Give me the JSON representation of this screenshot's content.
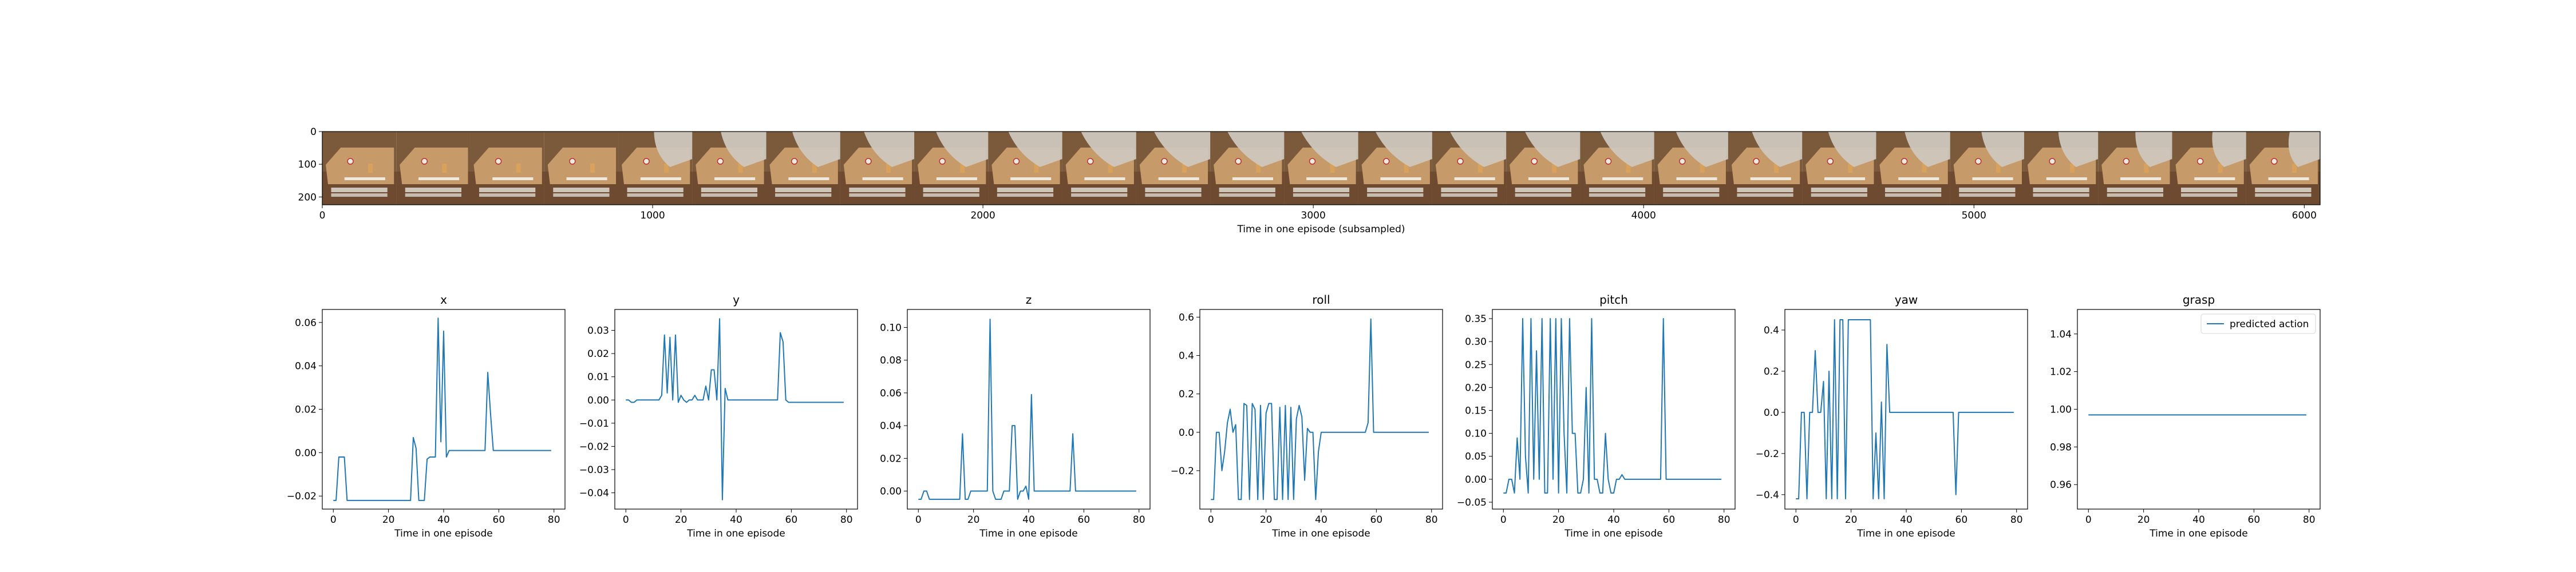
{
  "strip": {
    "xlabel": "Time in one episode (subsampled)",
    "x_ticks": [
      0,
      1000,
      2000,
      3000,
      4000,
      5000,
      6000
    ],
    "y_ticks": [
      0,
      100,
      200
    ],
    "xlim": [
      0,
      6048
    ],
    "ylim": [
      224,
      0
    ],
    "frame_count": 27,
    "colors": {
      "wood": "#7a5a3a",
      "table": "#6e4a30",
      "counter": "#c79a6a",
      "cup": "#d9a25c",
      "lid": "#e8e8e8",
      "label": "#eee9df",
      "arm": "#cfc7bd"
    }
  },
  "chart_data": [
    {
      "type": "line",
      "title": "x",
      "xlabel": "Time in one episode",
      "ylabel": "",
      "series": [
        {
          "name": "",
          "color": "#1f77b4",
          "x": [
            0,
            1,
            2,
            3,
            4,
            5,
            6,
            7,
            8,
            9,
            10,
            20,
            28,
            29,
            30,
            31,
            32,
            33,
            34,
            35,
            36,
            37,
            38,
            39,
            40,
            41,
            42,
            43,
            44,
            45,
            50,
            55,
            56,
            57,
            58,
            59,
            60,
            70,
            79
          ],
          "y": [
            -0.022,
            -0.022,
            -0.002,
            -0.002,
            -0.002,
            -0.022,
            -0.022,
            -0.022,
            -0.022,
            -0.022,
            -0.022,
            -0.022,
            -0.022,
            0.007,
            0.002,
            -0.022,
            -0.022,
            -0.022,
            -0.003,
            -0.002,
            -0.002,
            -0.002,
            0.062,
            0.005,
            0.056,
            -0.002,
            0.001,
            0.001,
            0.001,
            0.001,
            0.001,
            0.001,
            0.037,
            0.018,
            0.001,
            0.001,
            0.001,
            0.001,
            0.001
          ]
        }
      ],
      "x_ticks": [
        0,
        20,
        40,
        60,
        80
      ],
      "y_ticks": [
        -0.02,
        0.0,
        0.02,
        0.04,
        0.06
      ],
      "y_tick_labels": [
        "−0.02",
        "0.00",
        "0.02",
        "0.04",
        "0.06"
      ],
      "xlim": [
        -4,
        84
      ],
      "ylim": [
        -0.026,
        0.066
      ]
    },
    {
      "type": "line",
      "title": "y",
      "xlabel": "Time in one episode",
      "ylabel": "",
      "series": [
        {
          "name": "",
          "color": "#1f77b4",
          "x": [
            0,
            1,
            2,
            3,
            4,
            8,
            12,
            13,
            14,
            15,
            16,
            17,
            18,
            19,
            20,
            21,
            22,
            23,
            24,
            25,
            26,
            27,
            28,
            29,
            30,
            31,
            32,
            33,
            34,
            35,
            36,
            37,
            38,
            39,
            40,
            41,
            42,
            43,
            44,
            45,
            50,
            55,
            56,
            57,
            58,
            59,
            60,
            70,
            79
          ],
          "y": [
            0.0,
            0.0,
            -0.001,
            -0.001,
            0.0,
            0.0,
            0.0,
            0.002,
            0.028,
            0.003,
            0.027,
            0.0,
            0.028,
            -0.001,
            0.002,
            0.0,
            -0.001,
            0.0,
            0.0,
            0.002,
            0.0,
            0.0,
            0.0,
            0.006,
            0.0,
            0.013,
            0.013,
            0.0,
            0.035,
            -0.043,
            0.005,
            0.0,
            0.0,
            0.0,
            0.0,
            0.0,
            0.0,
            0.0,
            0.0,
            0.0,
            0.0,
            0.0,
            0.029,
            0.025,
            0.0,
            -0.001,
            -0.001,
            -0.001,
            -0.001
          ]
        }
      ],
      "x_ticks": [
        0,
        20,
        40,
        60,
        80
      ],
      "y_ticks": [
        -0.04,
        -0.03,
        -0.02,
        -0.01,
        0.0,
        0.01,
        0.02,
        0.03
      ],
      "y_tick_labels": [
        "−0.04",
        "−0.03",
        "−0.02",
        "−0.01",
        "0.00",
        "0.01",
        "0.02",
        "0.03"
      ],
      "xlim": [
        -4,
        84
      ],
      "ylim": [
        -0.047,
        0.039
      ]
    },
    {
      "type": "line",
      "title": "z",
      "xlabel": "Time in one episode",
      "ylabel": "",
      "series": [
        {
          "name": "",
          "color": "#1f77b4",
          "x": [
            0,
            1,
            2,
            3,
            4,
            5,
            10,
            15,
            16,
            17,
            18,
            19,
            20,
            22,
            24,
            25,
            26,
            27,
            28,
            29,
            30,
            31,
            32,
            33,
            34,
            35,
            36,
            37,
            38,
            39,
            40,
            41,
            42,
            43,
            44,
            45,
            50,
            55,
            56,
            57,
            58,
            59,
            60,
            70,
            79
          ],
          "y": [
            -0.005,
            -0.005,
            0.0,
            0.0,
            -0.005,
            -0.005,
            -0.005,
            -0.005,
            0.035,
            -0.005,
            -0.005,
            0.0,
            0.0,
            0.0,
            0.0,
            0.0,
            0.105,
            0.0,
            -0.005,
            -0.005,
            -0.005,
            0.0,
            0.0,
            0.0,
            0.04,
            0.04,
            -0.005,
            0.0,
            0.0,
            0.003,
            -0.005,
            0.059,
            0.0,
            0.0,
            0.0,
            0.0,
            0.0,
            0.0,
            0.035,
            0.0,
            0.0,
            0.0,
            0.0,
            0.0,
            0.0
          ]
        }
      ],
      "x_ticks": [
        0,
        20,
        40,
        60,
        80
      ],
      "y_ticks": [
        0.0,
        0.02,
        0.04,
        0.06,
        0.08,
        0.1
      ],
      "y_tick_labels": [
        "0.00",
        "0.02",
        "0.04",
        "0.06",
        "0.08",
        "0.10"
      ],
      "xlim": [
        -4,
        84
      ],
      "ylim": [
        -0.011,
        0.111
      ]
    },
    {
      "type": "line",
      "title": "roll",
      "xlabel": "Time in one episode",
      "ylabel": "",
      "series": [
        {
          "name": "",
          "color": "#1f77b4",
          "x": [
            0,
            1,
            2,
            3,
            4,
            5,
            6,
            7,
            8,
            9,
            10,
            11,
            12,
            13,
            14,
            15,
            16,
            17,
            18,
            19,
            20,
            21,
            22,
            23,
            24,
            25,
            26,
            27,
            28,
            29,
            30,
            31,
            32,
            33,
            34,
            35,
            36,
            37,
            38,
            39,
            40,
            41,
            42,
            43,
            44,
            45,
            50,
            55,
            56,
            57,
            58,
            59,
            60,
            70,
            79
          ],
          "y": [
            -0.35,
            -0.35,
            0.0,
            0.0,
            -0.2,
            -0.1,
            0.05,
            0.12,
            0.0,
            0.04,
            -0.35,
            -0.35,
            0.15,
            0.14,
            -0.35,
            0.15,
            0.12,
            -0.35,
            0.14,
            -0.35,
            0.1,
            0.15,
            0.15,
            -0.35,
            -0.35,
            0.13,
            -0.35,
            0.14,
            -0.35,
            0.13,
            -0.35,
            0.07,
            0.14,
            0.08,
            -0.25,
            0.02,
            0.0,
            0.0,
            -0.35,
            -0.1,
            0.0,
            0.0,
            0.0,
            0.0,
            0.0,
            0.0,
            0.0,
            0.0,
            0.0,
            0.05,
            0.59,
            0.0,
            0.0,
            0.0,
            0.0
          ]
        }
      ],
      "x_ticks": [
        0,
        20,
        40,
        60,
        80
      ],
      "y_ticks": [
        -0.2,
        0.0,
        0.2,
        0.4,
        0.6
      ],
      "y_tick_labels": [
        "−0.2",
        "0.0",
        "0.2",
        "0.4",
        "0.6"
      ],
      "xlim": [
        -4,
        84
      ],
      "ylim": [
        -0.4,
        0.64
      ]
    },
    {
      "type": "line",
      "title": "pitch",
      "xlabel": "Time in one episode",
      "ylabel": "",
      "series": [
        {
          "name": "",
          "color": "#1f77b4",
          "x": [
            0,
            1,
            2,
            3,
            4,
            5,
            6,
            7,
            8,
            9,
            10,
            11,
            12,
            13,
            14,
            15,
            16,
            17,
            18,
            19,
            20,
            21,
            22,
            23,
            24,
            25,
            26,
            27,
            28,
            29,
            30,
            31,
            32,
            33,
            34,
            35,
            36,
            37,
            38,
            39,
            40,
            41,
            42,
            43,
            44,
            45,
            50,
            55,
            56,
            57,
            58,
            59,
            60,
            70,
            79
          ],
          "y": [
            -0.03,
            -0.03,
            0.0,
            0.0,
            -0.03,
            0.09,
            0.0,
            0.35,
            0.05,
            -0.03,
            0.35,
            0.0,
            0.28,
            0.0,
            0.35,
            -0.03,
            -0.03,
            0.35,
            0.0,
            0.35,
            -0.03,
            0.35,
            0.1,
            -0.03,
            0.35,
            0.1,
            0.1,
            -0.03,
            -0.03,
            0.0,
            0.2,
            -0.03,
            0.35,
            0.0,
            0.0,
            -0.03,
            -0.03,
            0.1,
            0.0,
            -0.03,
            -0.03,
            0.0,
            0.0,
            0.01,
            0.0,
            0.0,
            0.0,
            0.0,
            0.0,
            0.0,
            0.35,
            0.0,
            0.0,
            0.0,
            0.0
          ]
        }
      ],
      "x_ticks": [
        0,
        20,
        40,
        60,
        80
      ],
      "y_ticks": [
        -0.05,
        0.0,
        0.05,
        0.1,
        0.15,
        0.2,
        0.25,
        0.3,
        0.35
      ],
      "y_tick_labels": [
        "−0.05",
        "0.00",
        "0.05",
        "0.10",
        "0.15",
        "0.20",
        "0.25",
        "0.30",
        "0.35"
      ],
      "xlim": [
        -4,
        84
      ],
      "ylim": [
        -0.065,
        0.37
      ]
    },
    {
      "type": "line",
      "title": "yaw",
      "xlabel": "Time in one episode",
      "ylabel": "",
      "series": [
        {
          "name": "",
          "color": "#1f77b4",
          "x": [
            0,
            1,
            2,
            3,
            4,
            5,
            6,
            7,
            8,
            9,
            10,
            11,
            12,
            13,
            14,
            15,
            16,
            17,
            18,
            19,
            20,
            21,
            22,
            23,
            24,
            25,
            26,
            27,
            28,
            29,
            30,
            31,
            32,
            33,
            34,
            35,
            36,
            37,
            38,
            39,
            40,
            41,
            42,
            43,
            44,
            45,
            50,
            55,
            56,
            57,
            58,
            59,
            60,
            70,
            79
          ],
          "y": [
            -0.42,
            -0.42,
            0.0,
            0.0,
            -0.42,
            0.0,
            0.0,
            0.3,
            0.0,
            0.0,
            0.15,
            -0.42,
            0.2,
            -0.42,
            0.45,
            -0.42,
            0.45,
            0.45,
            -0.42,
            0.45,
            0.45,
            0.45,
            0.45,
            0.45,
            0.45,
            0.45,
            0.45,
            0.45,
            -0.42,
            -0.1,
            -0.42,
            0.05,
            -0.42,
            0.33,
            0.0,
            0.0,
            0.0,
            0.0,
            0.0,
            0.0,
            0.0,
            0.0,
            0.0,
            0.0,
            0.0,
            0.0,
            0.0,
            0.0,
            0.0,
            0.0,
            -0.4,
            0.0,
            0.0,
            0.0,
            0.0
          ]
        }
      ],
      "x_ticks": [
        0,
        20,
        40,
        60,
        80
      ],
      "y_ticks": [
        -0.4,
        -0.2,
        0.0,
        0.2,
        0.4
      ],
      "y_tick_labels": [
        "−0.4",
        "−0.2",
        "0.0",
        "0.2",
        "0.4"
      ],
      "xlim": [
        -4,
        84
      ],
      "ylim": [
        -0.47,
        0.5
      ]
    },
    {
      "type": "line",
      "title": "grasp",
      "xlabel": "Time in one episode",
      "ylabel": "",
      "series": [
        {
          "name": "predicted action",
          "color": "#1f77b4",
          "x": [
            0,
            10,
            20,
            30,
            40,
            50,
            60,
            70,
            79
          ],
          "y": [
            0.997,
            0.997,
            0.997,
            0.997,
            0.997,
            0.997,
            0.997,
            0.997,
            0.997
          ]
        }
      ],
      "x_ticks": [
        0,
        20,
        40,
        60,
        80
      ],
      "y_ticks": [
        0.96,
        0.98,
        1.0,
        1.02,
        1.04
      ],
      "y_tick_labels": [
        "0.96",
        "0.98",
        "1.00",
        "1.02",
        "1.04"
      ],
      "xlim": [
        -4,
        84
      ],
      "ylim": [
        0.947,
        1.053
      ],
      "legend": {
        "placement": "top-right",
        "entries": [
          "predicted action"
        ]
      }
    }
  ]
}
